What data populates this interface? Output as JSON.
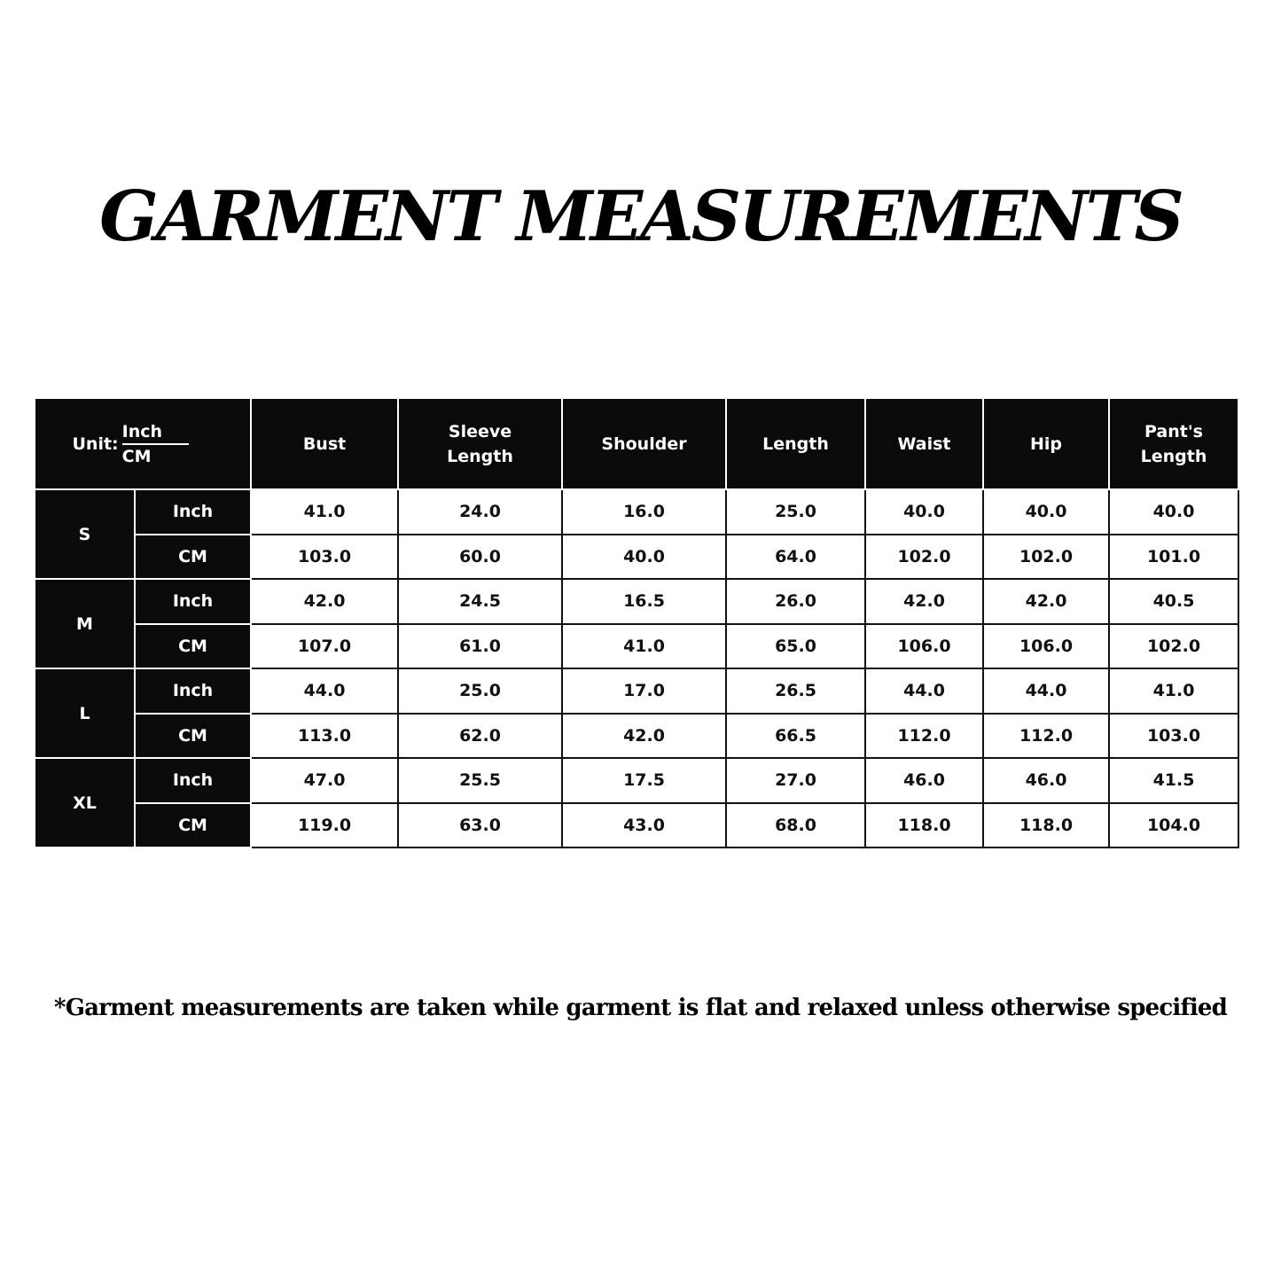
{
  "title": "GARMENT MEASUREMENTS",
  "table": {
    "unit_label": "Unit:",
    "unit_top": "Inch",
    "unit_bottom": "CM",
    "columns": [
      "Bust",
      "Sleeve Length",
      "Shoulder",
      "Length",
      "Waist",
      "Hip",
      "Pant's Length"
    ],
    "sizes": [
      {
        "size": "S",
        "rows": [
          {
            "unit": "Inch",
            "values": [
              "41.0",
              "24.0",
              "16.0",
              "25.0",
              "40.0",
              "40.0",
              "40.0"
            ]
          },
          {
            "unit": "CM",
            "values": [
              "103.0",
              "60.0",
              "40.0",
              "64.0",
              "102.0",
              "102.0",
              "101.0"
            ]
          }
        ]
      },
      {
        "size": "M",
        "rows": [
          {
            "unit": "Inch",
            "values": [
              "42.0",
              "24.5",
              "16.5",
              "26.0",
              "42.0",
              "42.0",
              "40.5"
            ]
          },
          {
            "unit": "CM",
            "values": [
              "107.0",
              "61.0",
              "41.0",
              "65.0",
              "106.0",
              "106.0",
              "102.0"
            ]
          }
        ]
      },
      {
        "size": "L",
        "rows": [
          {
            "unit": "Inch",
            "values": [
              "44.0",
              "25.0",
              "17.0",
              "26.5",
              "44.0",
              "44.0",
              "41.0"
            ]
          },
          {
            "unit": "CM",
            "values": [
              "113.0",
              "62.0",
              "42.0",
              "66.5",
              "112.0",
              "112.0",
              "103.0"
            ]
          }
        ]
      },
      {
        "size": "XL",
        "rows": [
          {
            "unit": "Inch",
            "values": [
              "47.0",
              "25.5",
              "17.5",
              "27.0",
              "46.0",
              "46.0",
              "41.5"
            ]
          },
          {
            "unit": "CM",
            "values": [
              "119.0",
              "63.0",
              "43.0",
              "68.0",
              "118.0",
              "118.0",
              "104.0"
            ]
          }
        ]
      }
    ]
  },
  "footnote": "*Garment measurements are taken while garment is flat and relaxed unless otherwise specified"
}
